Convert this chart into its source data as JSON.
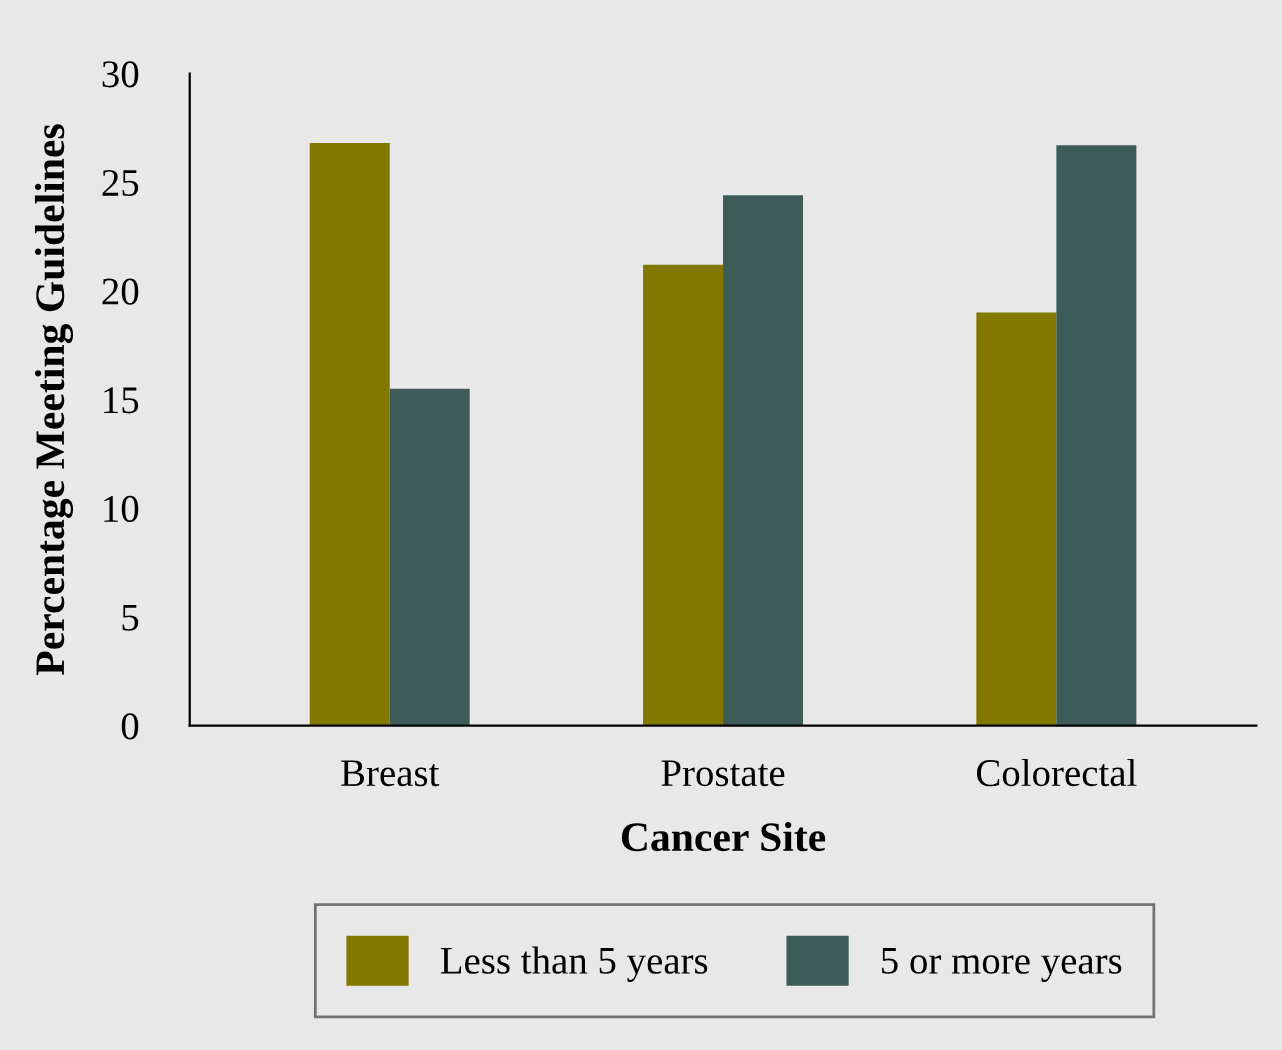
{
  "chart_data": {
    "type": "bar",
    "xlabel": "Cancer Site",
    "ylabel": "Percentage Meeting Guidelines",
    "categories": [
      "Breast",
      "Prostate",
      "Colorectal"
    ],
    "series": [
      {
        "name": "Less than 5 years",
        "color": "#827800",
        "values": [
          26.8,
          21.2,
          19.0
        ]
      },
      {
        "name": "5 or more years",
        "color": "#3d5c58",
        "values": [
          15.5,
          24.4,
          26.7
        ]
      }
    ],
    "ylim": [
      0,
      30
    ],
    "yticks": [
      0,
      5,
      10,
      15,
      20,
      25,
      30
    ],
    "grid": false,
    "legend": "bottom"
  }
}
